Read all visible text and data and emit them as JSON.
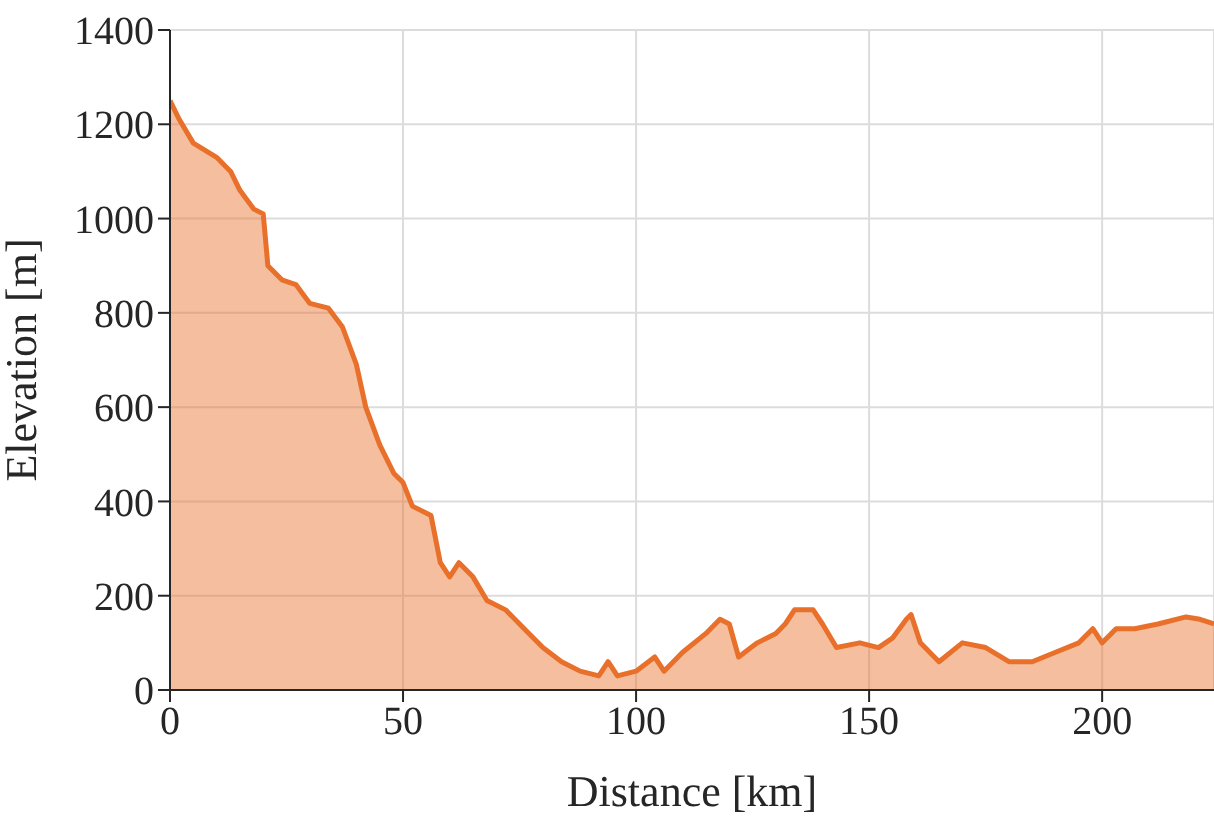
{
  "chart_data": {
    "type": "area",
    "xlabel": "Distance [km]",
    "ylabel": "Elevation [m]",
    "x": [
      0,
      2,
      5,
      10,
      13,
      15,
      18,
      20,
      21,
      24,
      27,
      30,
      34,
      37,
      40,
      42,
      45,
      48,
      50,
      52,
      56,
      58,
      60,
      62,
      65,
      68,
      72,
      76,
      80,
      84,
      88,
      92,
      94,
      96,
      100,
      104,
      106,
      110,
      115,
      118,
      120,
      122,
      126,
      130,
      132,
      134,
      138,
      140,
      143,
      148,
      152,
      155,
      158,
      159,
      161,
      165,
      170,
      175,
      180,
      185,
      190,
      195,
      198,
      200,
      203,
      207,
      212,
      218,
      221,
      224
    ],
    "series": [
      {
        "color": "#e8702a",
        "values": [
          1250,
          1210,
          1160,
          1130,
          1100,
          1060,
          1020,
          1010,
          900,
          870,
          860,
          820,
          810,
          770,
          690,
          600,
          520,
          460,
          440,
          390,
          370,
          270,
          240,
          270,
          240,
          190,
          170,
          130,
          90,
          60,
          40,
          30,
          60,
          30,
          40,
          70,
          40,
          80,
          120,
          150,
          140,
          70,
          100,
          120,
          140,
          170,
          170,
          140,
          90,
          100,
          90,
          110,
          150,
          160,
          100,
          60,
          100,
          90,
          60,
          60,
          80,
          100,
          130,
          100,
          130,
          130,
          140,
          155,
          150,
          140
        ]
      }
    ],
    "xlim": [
      0,
      224
    ],
    "xticks": [
      0,
      50,
      100,
      150,
      200
    ],
    "ylim": [
      0,
      1400
    ],
    "yticks": [
      0,
      200,
      400,
      600,
      800,
      1000,
      1200,
      1400
    ],
    "grid": true,
    "legend": false
  }
}
